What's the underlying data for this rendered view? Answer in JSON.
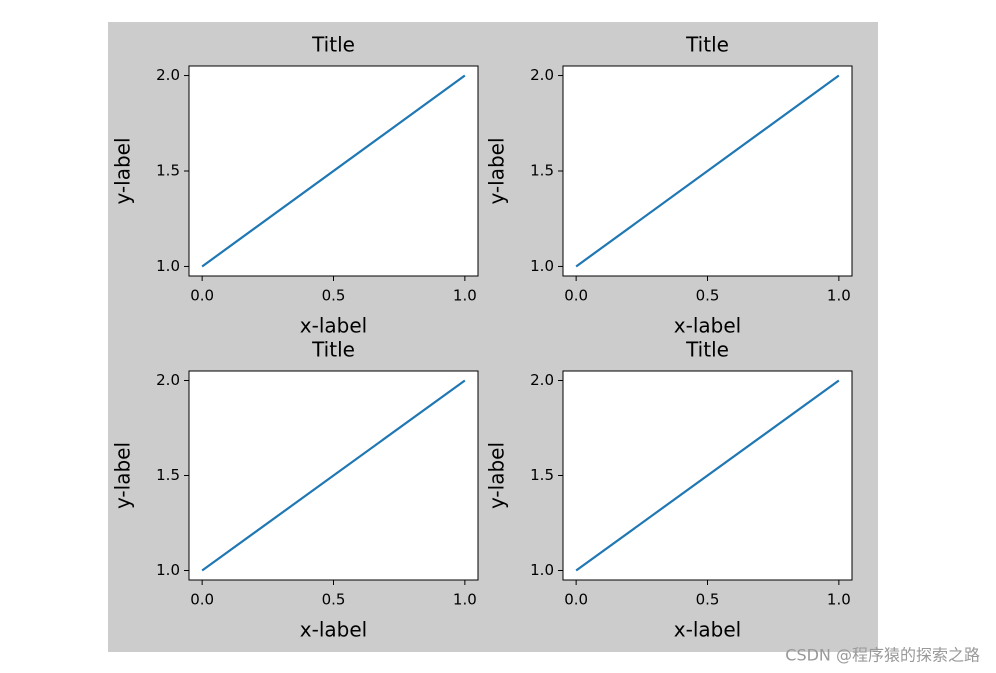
{
  "chart_data": [
    {
      "type": "line",
      "title": "Title",
      "xlabel": "x-label",
      "ylabel": "y-label",
      "x": [
        0,
        1
      ],
      "values": [
        1,
        2
      ],
      "color": "#1f77b4",
      "xlim": [
        -0.05,
        1.05
      ],
      "ylim": [
        0.95,
        2.05
      ],
      "xticks": [
        {
          "value": 0,
          "label": "0.0"
        },
        {
          "value": 0.5,
          "label": "0.5"
        },
        {
          "value": 1,
          "label": "1.0"
        }
      ],
      "yticks": [
        {
          "value": 1,
          "label": "1.0"
        },
        {
          "value": 1.5,
          "label": "1.5"
        },
        {
          "value": 2,
          "label": "2.0"
        }
      ]
    },
    {
      "type": "line",
      "title": "Title",
      "xlabel": "x-label",
      "ylabel": "y-label",
      "x": [
        0,
        1
      ],
      "values": [
        1,
        2
      ],
      "color": "#1f77b4",
      "xlim": [
        -0.05,
        1.05
      ],
      "ylim": [
        0.95,
        2.05
      ],
      "xticks": [
        {
          "value": 0,
          "label": "0.0"
        },
        {
          "value": 0.5,
          "label": "0.5"
        },
        {
          "value": 1,
          "label": "1.0"
        }
      ],
      "yticks": [
        {
          "value": 1,
          "label": "1.0"
        },
        {
          "value": 1.5,
          "label": "1.5"
        },
        {
          "value": 2,
          "label": "2.0"
        }
      ]
    },
    {
      "type": "line",
      "title": "Title",
      "xlabel": "x-label",
      "ylabel": "y-label",
      "x": [
        0,
        1
      ],
      "values": [
        1,
        2
      ],
      "color": "#1f77b4",
      "xlim": [
        -0.05,
        1.05
      ],
      "ylim": [
        0.95,
        2.05
      ],
      "xticks": [
        {
          "value": 0,
          "label": "0.0"
        },
        {
          "value": 0.5,
          "label": "0.5"
        },
        {
          "value": 1,
          "label": "1.0"
        }
      ],
      "yticks": [
        {
          "value": 1,
          "label": "1.0"
        },
        {
          "value": 1.5,
          "label": "1.5"
        },
        {
          "value": 2,
          "label": "2.0"
        }
      ]
    },
    {
      "type": "line",
      "title": "Title",
      "xlabel": "x-label",
      "ylabel": "y-label",
      "x": [
        0,
        1
      ],
      "values": [
        1,
        2
      ],
      "color": "#1f77b4",
      "xlim": [
        -0.05,
        1.05
      ],
      "ylim": [
        0.95,
        2.05
      ],
      "xticks": [
        {
          "value": 0,
          "label": "0.0"
        },
        {
          "value": 0.5,
          "label": "0.5"
        },
        {
          "value": 1,
          "label": "1.0"
        }
      ],
      "yticks": [
        {
          "value": 1,
          "label": "1.0"
        },
        {
          "value": 1.5,
          "label": "1.5"
        },
        {
          "value": 2,
          "label": "2.0"
        }
      ]
    }
  ],
  "watermark": "CSDN @程序猿的探索之路"
}
